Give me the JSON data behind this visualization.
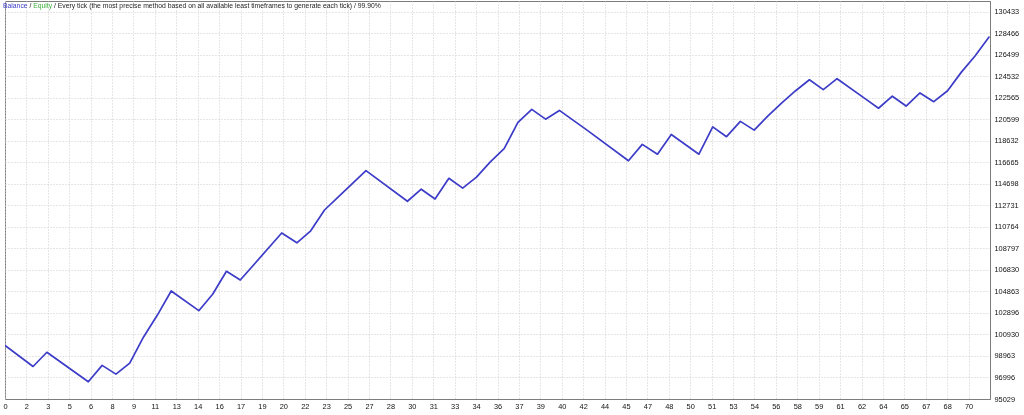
{
  "chart_data": {
    "type": "line",
    "title": "Every tick (the most precise method based on all available least timeframes to generate each tick) / 99.90%",
    "annotations": [
      "/",
      "/"
    ],
    "x": [
      0.2,
      2.2,
      3.2,
      6.2,
      7.2,
      8.2,
      9.2,
      10.2,
      11.2,
      12.2,
      14.2,
      15.2,
      16.2,
      17.2,
      20.2,
      21.3,
      22.3,
      23.3,
      24.3,
      26.3,
      29.3,
      30.3,
      31.3,
      32.3,
      33.3,
      34.3,
      35.3,
      36.3,
      37.3,
      38.3,
      39.3,
      40.3,
      42.3,
      45.3,
      46.3,
      47.4,
      48.4,
      50.4,
      51.4,
      52.4,
      53.4,
      54.4,
      55.4,
      56.4,
      57.4,
      58.4,
      59.4,
      60.4,
      62.4,
      63.4,
      64.4,
      65.4,
      66.4,
      67.4,
      68.4,
      69.4,
      70.4,
      71.4
    ],
    "series": [
      {
        "name": "Balance",
        "color": "#3c3cc8",
        "values": [
          99900,
          98000,
          99300,
          96600,
          98100,
          97300,
          98300,
          100700,
          102700,
          104900,
          103100,
          104600,
          106700,
          105900,
          110200,
          109300,
          110400,
          112300,
          113500,
          115900,
          113100,
          114200,
          113300,
          115200,
          114300,
          115300,
          116700,
          117900,
          120300,
          121500,
          120600,
          121400,
          119600,
          116800,
          118300,
          117400,
          119200,
          117400,
          119900,
          119000,
          120400,
          119600,
          120900,
          122100,
          123200,
          124200,
          123300,
          124300,
          122500,
          121600,
          122700,
          121800,
          123000,
          122200,
          123200,
          124900,
          126400,
          128100
        ]
      },
      {
        "name": "Equity",
        "color": "#40b040",
        "values": [
          null,
          null,
          null,
          null,
          null,
          null,
          null,
          null,
          null,
          null,
          null,
          null,
          null,
          null,
          null,
          null,
          null,
          null,
          null,
          null,
          null,
          null,
          null,
          null,
          null,
          null,
          null,
          null,
          null,
          null,
          null,
          null,
          null,
          null,
          null,
          null,
          null,
          null,
          null,
          null,
          null,
          null,
          null,
          null,
          null,
          null,
          null,
          null,
          null,
          null,
          null,
          null,
          null,
          null,
          null,
          null,
          null,
          null
        ]
      }
    ],
    "xlim": [
      0.17,
      71.47
    ],
    "xticks": [
      {
        "value": 0.17,
        "label": "0"
      },
      {
        "value": 1.72,
        "label": "2"
      },
      {
        "value": 3.27,
        "label": "3"
      },
      {
        "value": 4.82,
        "label": "5"
      },
      {
        "value": 6.37,
        "label": "6"
      },
      {
        "value": 7.92,
        "label": "8"
      },
      {
        "value": 9.47,
        "label": "9"
      },
      {
        "value": 11.02,
        "label": "11"
      },
      {
        "value": 12.57,
        "label": "13"
      },
      {
        "value": 14.12,
        "label": "14"
      },
      {
        "value": 15.67,
        "label": "16"
      },
      {
        "value": 17.22,
        "label": "17"
      },
      {
        "value": 18.77,
        "label": "19"
      },
      {
        "value": 20.32,
        "label": "20"
      },
      {
        "value": 21.87,
        "label": "22"
      },
      {
        "value": 23.42,
        "label": "23"
      },
      {
        "value": 24.97,
        "label": "25"
      },
      {
        "value": 26.52,
        "label": "27"
      },
      {
        "value": 28.07,
        "label": "28"
      },
      {
        "value": 29.62,
        "label": "30"
      },
      {
        "value": 31.17,
        "label": "31"
      },
      {
        "value": 32.72,
        "label": "33"
      },
      {
        "value": 34.27,
        "label": "34"
      },
      {
        "value": 35.82,
        "label": "36"
      },
      {
        "value": 37.37,
        "label": "37"
      },
      {
        "value": 38.92,
        "label": "39"
      },
      {
        "value": 40.47,
        "label": "40"
      },
      {
        "value": 42.02,
        "label": "42"
      },
      {
        "value": 43.57,
        "label": "44"
      },
      {
        "value": 45.12,
        "label": "45"
      },
      {
        "value": 46.67,
        "label": "47"
      },
      {
        "value": 48.22,
        "label": "48"
      },
      {
        "value": 49.77,
        "label": "50"
      },
      {
        "value": 51.32,
        "label": "51"
      },
      {
        "value": 52.87,
        "label": "53"
      },
      {
        "value": 54.42,
        "label": "54"
      },
      {
        "value": 55.97,
        "label": "56"
      },
      {
        "value": 57.52,
        "label": "58"
      },
      {
        "value": 59.07,
        "label": "59"
      },
      {
        "value": 60.62,
        "label": "61"
      },
      {
        "value": 62.17,
        "label": "62"
      },
      {
        "value": 63.72,
        "label": "64"
      },
      {
        "value": 65.27,
        "label": "65"
      },
      {
        "value": 66.82,
        "label": "67"
      },
      {
        "value": 68.37,
        "label": "68"
      },
      {
        "value": 69.92,
        "label": "70"
      }
    ],
    "ylim": [
      95029,
      131400
    ],
    "yticks": [
      95029,
      96996,
      98963,
      100930,
      102896,
      104863,
      106830,
      108797,
      110764,
      112731,
      114698,
      116665,
      118632,
      120599,
      122565,
      124532,
      126499,
      128466,
      130433
    ],
    "grid": true,
    "legend": "top left"
  }
}
